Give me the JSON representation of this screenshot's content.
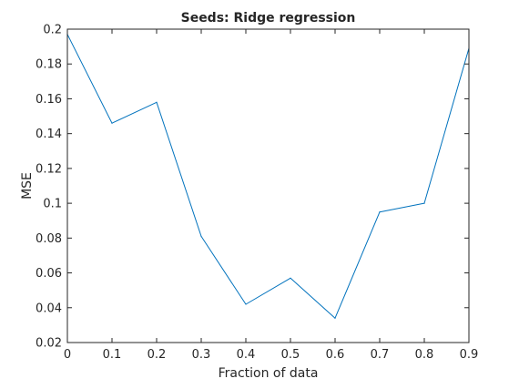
{
  "chart_data": {
    "type": "line",
    "title": "Seeds: Ridge regression",
    "xlabel": "Fraction of data",
    "ylabel": "MSE",
    "xlim": [
      0,
      0.9
    ],
    "ylim": [
      0.02,
      0.2
    ],
    "x_ticks": [
      0,
      0.1,
      0.2,
      0.3,
      0.4,
      0.5,
      0.6,
      0.7,
      0.8,
      0.9
    ],
    "x_tick_labels": [
      "0",
      "0.1",
      "0.2",
      "0.3",
      "0.4",
      "0.5",
      "0.6",
      "0.7",
      "0.8",
      "0.9"
    ],
    "y_ticks": [
      0.02,
      0.04,
      0.06,
      0.08,
      0.1,
      0.12,
      0.14,
      0.16,
      0.18,
      0.2
    ],
    "y_tick_labels": [
      "0.02",
      "0.04",
      "0.06",
      "0.08",
      "0.1",
      "0.12",
      "0.14",
      "0.16",
      "0.18",
      "0.2"
    ],
    "grid": false,
    "series": [
      {
        "color": "#0072BD",
        "x": [
          0,
          0.1,
          0.2,
          0.3,
          0.4,
          0.5,
          0.6,
          0.7,
          0.8,
          0.9
        ],
        "y": [
          0.197,
          0.146,
          0.158,
          0.081,
          0.042,
          0.057,
          0.034,
          0.095,
          0.1,
          0.189
        ]
      }
    ]
  }
}
